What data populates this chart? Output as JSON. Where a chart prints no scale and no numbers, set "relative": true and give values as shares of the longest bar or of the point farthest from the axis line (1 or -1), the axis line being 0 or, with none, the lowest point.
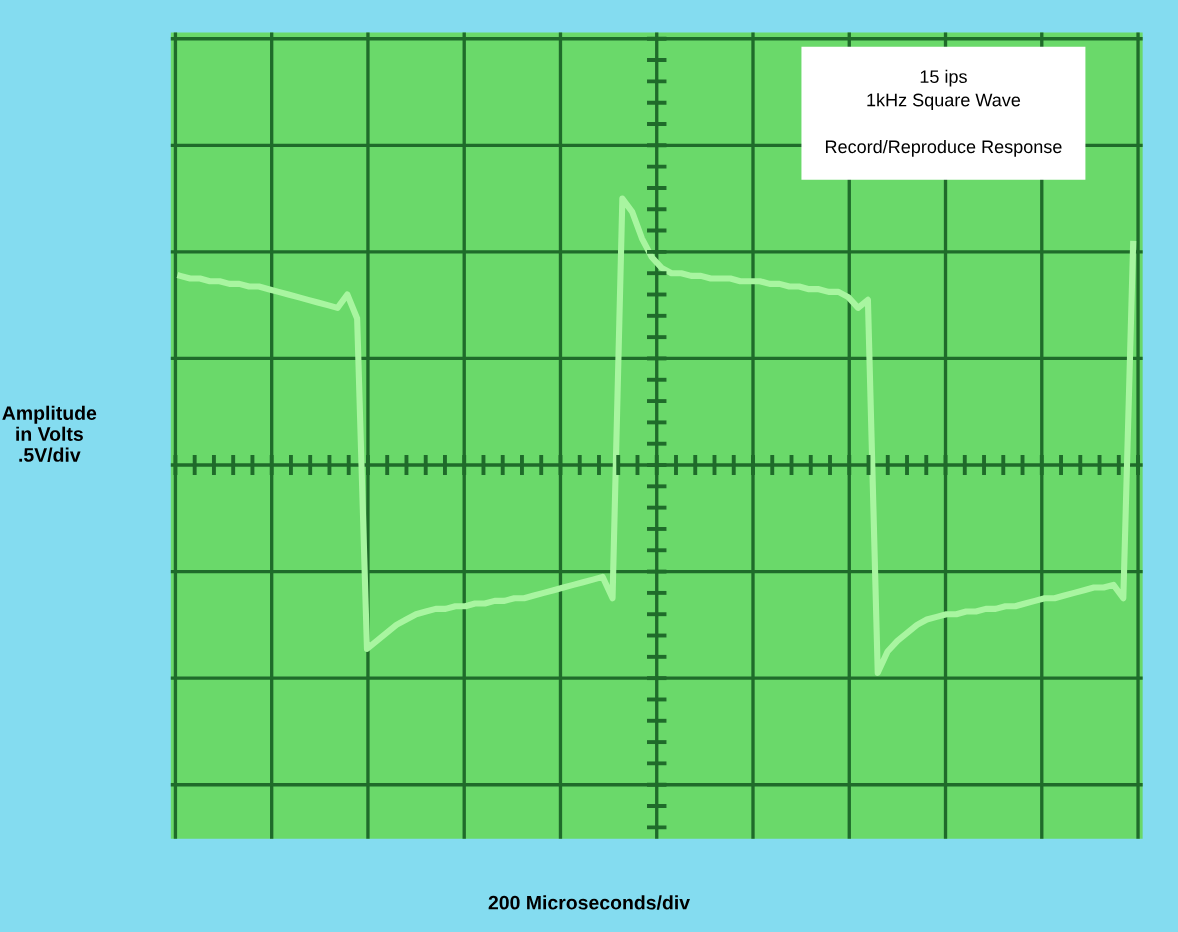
{
  "chart_data": {
    "type": "line",
    "relative": true,
    "ylabel": "Amplitude\nin Volts\n.5V/div",
    "annotations": [
      "15 ips\n1kHz Square Wave\n\nRecord/Reproduce Response",
      "200 Microseconds/div"
    ],
    "categories": [
      null,
      null,
      null,
      null,
      null,
      null,
      null,
      null,
      null,
      null,
      null,
      null,
      null,
      null,
      null,
      null,
      null,
      null,
      null,
      null,
      null,
      null,
      null,
      null,
      null,
      null,
      null,
      null,
      null,
      null,
      null,
      null,
      null,
      null,
      null,
      null,
      null,
      null,
      null,
      null,
      null,
      null,
      null,
      null,
      null,
      null,
      null,
      null,
      null,
      null,
      null,
      null,
      null,
      null,
      null,
      null,
      null,
      null,
      null,
      null,
      null,
      null,
      null,
      null,
      null,
      null,
      null,
      null,
      null,
      null,
      null,
      null,
      null,
      null,
      null,
      null,
      null,
      null,
      null,
      null,
      null,
      null,
      null,
      null,
      null,
      null,
      null,
      null,
      null,
      null,
      null,
      null,
      null,
      null,
      null,
      null,
      null,
      null
    ],
    "grid": true,
    "tick_labels": false,
    "marker": "none",
    "line_style": "solid",
    "series": [
      {
        "color": "#a8f5a0",
        "values": [
          0.71,
          0.7,
          0.7,
          0.69,
          0.69,
          0.68,
          0.68,
          0.67,
          0.67,
          0.66,
          0.65,
          0.64,
          0.63,
          0.62,
          0.61,
          0.6,
          0.59,
          0.64,
          0.55,
          -0.69,
          -0.66,
          -0.63,
          -0.6,
          -0.58,
          -0.56,
          -0.55,
          -0.54,
          -0.54,
          -0.53,
          -0.53,
          -0.52,
          -0.52,
          -0.51,
          -0.51,
          -0.5,
          -0.5,
          -0.49,
          -0.48,
          -0.47,
          -0.46,
          -0.45,
          -0.44,
          -0.43,
          -0.42,
          -0.5,
          1.0,
          0.95,
          0.85,
          0.78,
          0.74,
          0.72,
          0.72,
          0.71,
          0.71,
          0.7,
          0.7,
          0.7,
          0.69,
          0.69,
          0.69,
          0.68,
          0.68,
          0.67,
          0.67,
          0.66,
          0.66,
          0.65,
          0.65,
          0.63,
          0.59,
          0.62,
          -0.78,
          -0.7,
          -0.66,
          -0.63,
          -0.6,
          -0.58,
          -0.57,
          -0.56,
          -0.56,
          -0.55,
          -0.55,
          -0.54,
          -0.54,
          -0.53,
          -0.53,
          -0.52,
          -0.51,
          -0.5,
          -0.5,
          -0.49,
          -0.48,
          -0.47,
          -0.46,
          -0.46,
          -0.45,
          -0.5,
          0.83
        ]
      }
    ]
  }
}
